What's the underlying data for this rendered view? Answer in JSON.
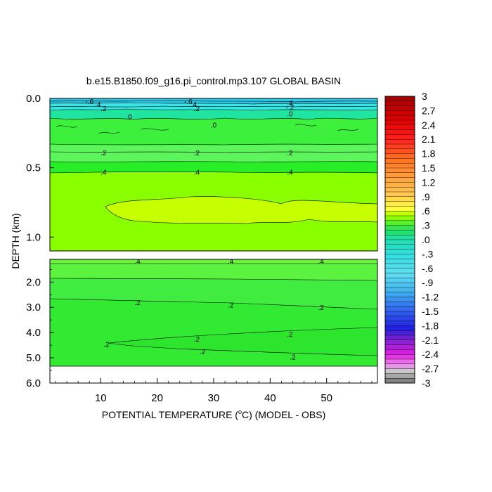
{
  "chart_data": {
    "type": "contour",
    "title": "b.e15.B1850.f09_g16.pi_control.mp3.107 GLOBAL BASIN",
    "xlabel_parts": [
      "POTENTIAL TEMPERATURE (",
      "o",
      "C) (MODEL - OBS)"
    ],
    "ylabel": "DEPTH (km)",
    "x_ticks": [
      "10",
      "20",
      "30",
      "40",
      "50"
    ],
    "x_tick_values": [
      10,
      20,
      30,
      40,
      50
    ],
    "xlim": [
      1,
      59
    ],
    "upper_panel": {
      "ylim": [
        0.0,
        1.1
      ],
      "y_ticks": [
        "0.0",
        "0.5",
        "1.0"
      ],
      "y_tick_values": [
        0.0,
        0.5,
        1.0
      ]
    },
    "lower_panel": {
      "ylim": [
        1.1,
        6.0
      ],
      "y_ticks": [
        "2.0",
        "3.0",
        "4.0",
        "5.0",
        "6.0"
      ],
      "y_tick_values": [
        2.0,
        3.0,
        4.0,
        5.0,
        6.0
      ]
    },
    "contour_labels": [
      {
        "text": "-.6",
        "x": 8,
        "y": 0.02,
        "panel": "upper"
      },
      {
        "text": ".4",
        "x": 9.5,
        "y": 0.04,
        "panel": "upper"
      },
      {
        "text": ".2",
        "x": 10.5,
        "y": 0.07,
        "panel": "upper"
      },
      {
        "text": "-.6",
        "x": 25.5,
        "y": 0.02,
        "panel": "upper"
      },
      {
        "text": ".4",
        "x": 26.5,
        "y": 0.04,
        "panel": "upper"
      },
      {
        "text": ".2",
        "x": 27,
        "y": 0.07,
        "panel": "upper"
      },
      {
        "text": ".4",
        "x": 43.5,
        "y": 0.03,
        "panel": "upper"
      },
      {
        "text": "-.2",
        "x": 43.5,
        "y": 0.06,
        "panel": "upper"
      },
      {
        "text": ".0",
        "x": 43.5,
        "y": 0.11,
        "panel": "upper"
      },
      {
        "text": ".0",
        "x": 15,
        "y": 0.13,
        "panel": "upper"
      },
      {
        "text": ".0",
        "x": 30,
        "y": 0.19,
        "panel": "upper"
      },
      {
        "text": ".2",
        "x": 10.5,
        "y": 0.39,
        "panel": "upper"
      },
      {
        "text": ".2",
        "x": 27,
        "y": 0.39,
        "panel": "upper"
      },
      {
        "text": ".2",
        "x": 43.5,
        "y": 0.39,
        "panel": "upper"
      },
      {
        "text": ".4",
        "x": 10.5,
        "y": 0.53,
        "panel": "upper"
      },
      {
        "text": ".4",
        "x": 27,
        "y": 0.53,
        "panel": "upper"
      },
      {
        "text": ".4",
        "x": 43.5,
        "y": 0.53,
        "panel": "upper"
      },
      {
        "text": ".4",
        "x": 16.5,
        "y": 1.15,
        "panel": "lower"
      },
      {
        "text": ".4",
        "x": 33,
        "y": 1.15,
        "panel": "lower"
      },
      {
        "text": ".4",
        "x": 49,
        "y": 1.15,
        "panel": "lower"
      },
      {
        "text": ".2",
        "x": 16.5,
        "y": 2.8,
        "panel": "lower"
      },
      {
        "text": ".2",
        "x": 33,
        "y": 2.9,
        "panel": "lower"
      },
      {
        "text": ".2",
        "x": 49,
        "y": 3.0,
        "panel": "lower"
      },
      {
        "text": ".2",
        "x": 11,
        "y": 4.45,
        "panel": "lower"
      },
      {
        "text": ".2",
        "x": 27,
        "y": 4.25,
        "panel": "lower"
      },
      {
        "text": ".2",
        "x": 43.5,
        "y": 4.05,
        "panel": "lower"
      },
      {
        "text": ".2",
        "x": 28,
        "y": 4.75,
        "panel": "lower"
      },
      {
        "text": ".2",
        "x": 44,
        "y": 4.95,
        "panel": "lower"
      }
    ],
    "colorbar": {
      "labels": [
        "3",
        "2.7",
        "2.4",
        "2.1",
        "1.8",
        "1.5",
        "1.2",
        ".9",
        ".6",
        ".3",
        ".0",
        "-.3",
        "-.6",
        "-.9",
        "-1.2",
        "-1.5",
        "-1.8",
        "-2.1",
        "-2.4",
        "-2.7",
        "-3"
      ],
      "label_values": [
        3,
        2.7,
        2.4,
        2.1,
        1.8,
        1.5,
        1.2,
        0.9,
        0.6,
        0.3,
        0.0,
        -0.3,
        -0.6,
        -0.9,
        -1.2,
        -1.5,
        -1.8,
        -2.1,
        -2.4,
        -2.7,
        -3
      ],
      "range": [
        -3,
        3
      ],
      "levels_per_label": 3
    },
    "colors": {
      "upper_bg": "#8aff00",
      "light_band": "#c6ff00",
      "green_band": "#28ee28",
      "mid_green": "#5cf55c",
      "teal_band": "#20e5a0",
      "cyan_band": "#38e6e6",
      "lower_top": "#6ef33b",
      "lower_main": "#33ea33"
    }
  }
}
